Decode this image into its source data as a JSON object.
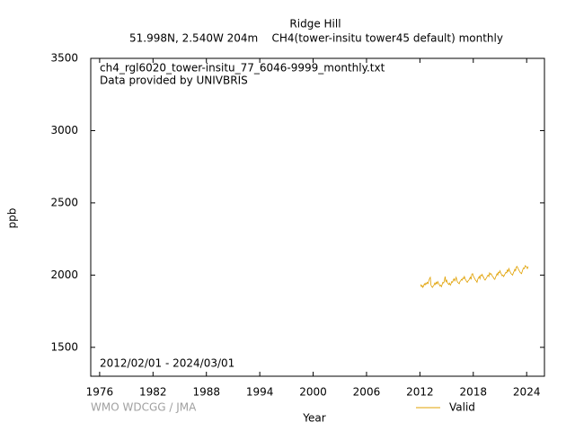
{
  "chart_data": {
    "type": "line",
    "title": "Ridge Hill",
    "subtitle": "51.998N, 2.540W 204m    CH4(tower-insitu tower45 default) monthly",
    "annotations": [
      "ch4_rgl6020_tower-insitu_77_6046-9999_monthly.txt",
      "Data provided by UNIVBRIS",
      "2012/02/01 - 2024/03/01",
      "WMO WDCGG / JMA"
    ],
    "xlabel": "Year",
    "ylabel": "ppb",
    "xlim": [
      1975,
      2026
    ],
    "xticks": [
      1976,
      1982,
      1988,
      1994,
      2000,
      2006,
      2012,
      2018,
      2024
    ],
    "ylim": [
      1300,
      3500
    ],
    "yticks": [
      1500,
      2000,
      2500,
      3000,
      3500
    ],
    "legend": "lower right",
    "x": [
      2012.08,
      2012.17,
      2012.25,
      2012.33,
      2012.42,
      2012.5,
      2012.58,
      2012.67,
      2012.75,
      2012.83,
      2012.92,
      2013,
      2013.08,
      2013.17,
      2013.25,
      2013.33,
      2013.42,
      2013.5,
      2013.58,
      2013.67,
      2013.75,
      2013.83,
      2013.92,
      2014,
      2014.08,
      2014.17,
      2014.25,
      2014.33,
      2014.42,
      2014.5,
      2014.58,
      2014.67,
      2014.75,
      2014.83,
      2014.92,
      2015,
      2015.08,
      2015.17,
      2015.25,
      2015.33,
      2015.42,
      2015.5,
      2015.58,
      2015.67,
      2015.75,
      2015.83,
      2015.92,
      2016,
      2016.08,
      2016.17,
      2016.25,
      2016.33,
      2016.42,
      2016.5,
      2016.58,
      2016.67,
      2016.75,
      2016.83,
      2016.92,
      2017,
      2017.08,
      2017.17,
      2017.25,
      2017.33,
      2017.42,
      2017.5,
      2017.58,
      2017.67,
      2017.75,
      2017.83,
      2017.92,
      2018,
      2018.08,
      2018.17,
      2018.25,
      2018.33,
      2018.42,
      2018.5,
      2018.58,
      2018.67,
      2018.75,
      2018.83,
      2018.92,
      2019,
      2019.08,
      2019.17,
      2019.25,
      2019.33,
      2019.42,
      2019.5,
      2019.58,
      2019.67,
      2019.75,
      2019.83,
      2019.92,
      2020,
      2020.08,
      2020.17,
      2020.25,
      2020.33,
      2020.42,
      2020.5,
      2020.58,
      2020.67,
      2020.75,
      2020.83,
      2020.92,
      2021,
      2021.08,
      2021.17,
      2021.25,
      2021.33,
      2021.42,
      2021.5,
      2021.58,
      2021.67,
      2021.75,
      2021.83,
      2021.92,
      2022,
      2022.08,
      2022.17,
      2022.25,
      2022.33,
      2022.42,
      2022.5,
      2022.58,
      2022.67,
      2022.75,
      2022.83,
      2022.92,
      2023,
      2023.08,
      2023.17,
      2023.25,
      2023.33,
      2023.42,
      2023.5,
      2023.58,
      2023.67,
      2023.75,
      2023.83,
      2023.92,
      2024,
      2024.08,
      2024.17
    ],
    "series": [
      {
        "name": "Valid",
        "color": "#e0a000",
        "values": [
          1935,
          1920,
          1928,
          1915,
          1925,
          1940,
          1932,
          1945,
          1938,
          1950,
          1942,
          1960,
          1975,
          1985,
          1930,
          1920,
          1915,
          1925,
          1930,
          1945,
          1935,
          1950,
          1940,
          1955,
          1945,
          1935,
          1925,
          1930,
          1920,
          1935,
          1950,
          1945,
          1960,
          1990,
          1955,
          1965,
          1950,
          1940,
          1935,
          1945,
          1930,
          1940,
          1955,
          1950,
          1965,
          1975,
          1960,
          1970,
          1985,
          1960,
          1950,
          1945,
          1940,
          1955,
          1960,
          1970,
          1965,
          1980,
          1975,
          1990,
          1975,
          1965,
          1955,
          1950,
          1960,
          1965,
          1975,
          1985,
          1970,
          2005,
          2010,
          1995,
          1985,
          1975,
          1965,
          1960,
          1950,
          1970,
          1980,
          1990,
          1975,
          2000,
          1995,
          2005,
          1990,
          1985,
          1970,
          1965,
          1975,
          1980,
          1995,
          2000,
          1990,
          2015,
          2005,
          2010,
          2000,
          1990,
          1985,
          1975,
          1970,
          1985,
          1995,
          2010,
          2000,
          2020,
          2015,
          2030,
          2015,
          2005,
          1995,
          2000,
          1990,
          2000,
          2010,
          2020,
          2015,
          2035,
          2025,
          2045,
          2030,
          2020,
          2010,
          2005,
          2000,
          2015,
          2025,
          2040,
          2030,
          2055,
          2060,
          2050,
          2040,
          2030,
          2020,
          2015,
          2010,
          2025,
          2040,
          2050,
          2045,
          2065,
          2060,
          2055,
          2045,
          2060
        ]
      }
    ]
  }
}
